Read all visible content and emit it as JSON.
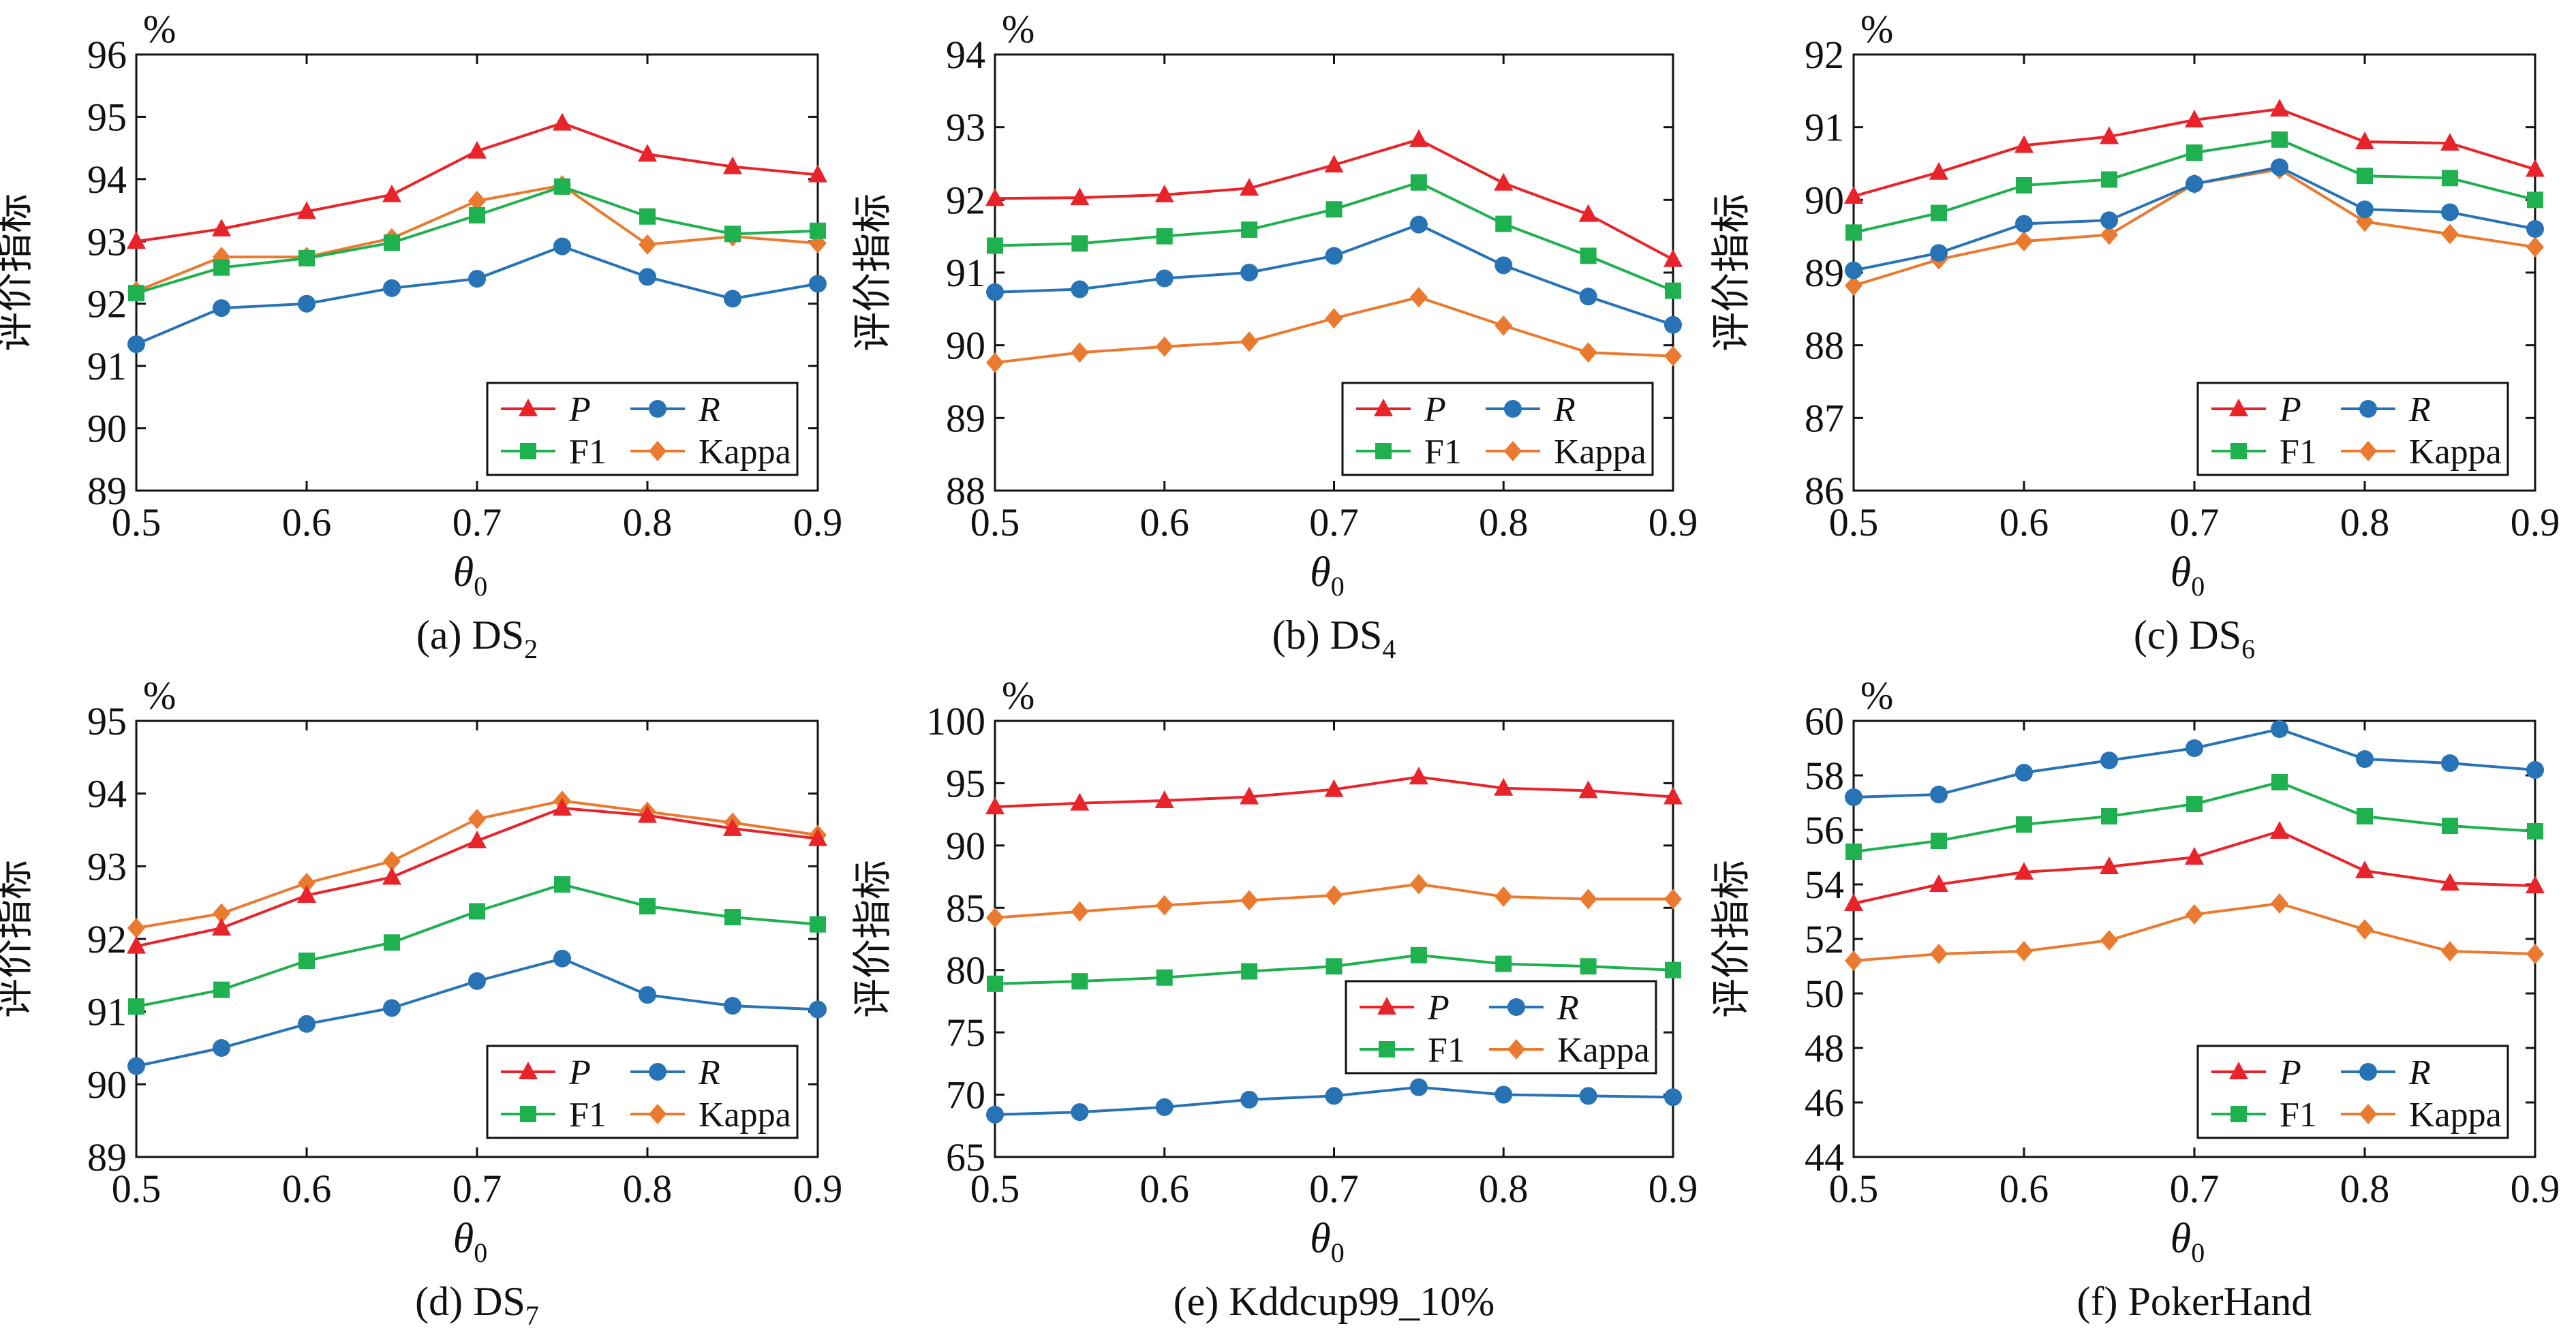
{
  "colors": {
    "P": "#e8242a",
    "R": "#2873b5",
    "F1": "#1fb04f",
    "Kappa": "#ea7a2f"
  },
  "legend": {
    "P": "P",
    "R": "R",
    "F1": "F1",
    "Kappa": "Kappa"
  },
  "chart_data": [
    {
      "type": "line",
      "caption": "(a) DS",
      "caption_sub": "2",
      "unit": "%",
      "ylabel": "评价指标",
      "xlabel": "θ",
      "xlabel_sub": "0",
      "x": [
        0.5,
        0.55,
        0.6,
        0.65,
        0.7,
        0.75,
        0.8,
        0.85,
        0.9
      ],
      "xticks": [
        "0.5",
        "0.6",
        "0.7",
        "0.8",
        "0.9"
      ],
      "xtick_values": [
        0.5,
        0.6,
        0.7,
        0.8,
        0.9
      ],
      "xlim": [
        0.5,
        0.9
      ],
      "ylim": [
        89,
        96
      ],
      "yticks": [
        "89",
        "90",
        "91",
        "92",
        "93",
        "94",
        "95",
        "96"
      ],
      "ytick_values": [
        89,
        90,
        91,
        92,
        93,
        94,
        95,
        96
      ],
      "series": [
        {
          "name": "P",
          "marker": "triangle",
          "values": [
            93.0,
            93.2,
            93.48,
            93.75,
            94.45,
            94.9,
            94.4,
            94.2,
            94.07
          ]
        },
        {
          "name": "R",
          "marker": "circle",
          "values": [
            91.35,
            91.93,
            92.0,
            92.25,
            92.4,
            92.92,
            92.43,
            92.08,
            92.32
          ]
        },
        {
          "name": "F1",
          "marker": "square",
          "values": [
            92.17,
            92.58,
            92.73,
            92.98,
            93.42,
            93.88,
            93.4,
            93.12,
            93.17
          ]
        },
        {
          "name": "Kappa",
          "marker": "diamond",
          "values": [
            92.2,
            92.75,
            92.75,
            93.05,
            93.65,
            93.9,
            92.95,
            93.08,
            92.97
          ]
        }
      ]
    },
    {
      "type": "line",
      "caption": "(b) DS",
      "caption_sub": "4",
      "unit": "%",
      "ylabel": "评价指标",
      "xlabel": "θ",
      "xlabel_sub": "0",
      "x": [
        0.5,
        0.55,
        0.6,
        0.65,
        0.7,
        0.75,
        0.8,
        0.85,
        0.9
      ],
      "xticks": [
        "0.5",
        "0.6",
        "0.7",
        "0.8",
        "0.9"
      ],
      "xtick_values": [
        0.5,
        0.6,
        0.7,
        0.8,
        0.9
      ],
      "xlim": [
        0.5,
        0.9
      ],
      "ylim": [
        88,
        94
      ],
      "yticks": [
        "88",
        "89",
        "90",
        "91",
        "92",
        "93",
        "94"
      ],
      "ytick_values": [
        88,
        89,
        90,
        91,
        92,
        93,
        94
      ],
      "series": [
        {
          "name": "P",
          "marker": "triangle",
          "values": [
            92.02,
            92.03,
            92.07,
            92.16,
            92.48,
            92.83,
            92.23,
            91.8,
            91.18
          ]
        },
        {
          "name": "R",
          "marker": "circle",
          "values": [
            90.73,
            90.77,
            90.92,
            91.0,
            91.23,
            91.66,
            91.1,
            90.67,
            90.28
          ]
        },
        {
          "name": "F1",
          "marker": "square",
          "values": [
            91.37,
            91.4,
            91.5,
            91.59,
            91.87,
            92.24,
            91.67,
            91.23,
            90.75
          ]
        },
        {
          "name": "Kappa",
          "marker": "diamond",
          "values": [
            89.76,
            89.9,
            89.98,
            90.05,
            90.37,
            90.66,
            90.27,
            89.9,
            89.85
          ]
        }
      ]
    },
    {
      "type": "line",
      "caption": "(c) DS",
      "caption_sub": "6",
      "unit": "%",
      "ylabel": "评价指标",
      "xlabel": "θ",
      "xlabel_sub": "0",
      "x": [
        0.5,
        0.55,
        0.6,
        0.65,
        0.7,
        0.75,
        0.8,
        0.85,
        0.9
      ],
      "xticks": [
        "0.5",
        "0.6",
        "0.7",
        "0.8",
        "0.9"
      ],
      "xtick_values": [
        0.5,
        0.6,
        0.7,
        0.8,
        0.9
      ],
      "xlim": [
        0.5,
        0.9
      ],
      "ylim": [
        86,
        92
      ],
      "yticks": [
        "86",
        "87",
        "88",
        "89",
        "90",
        "91",
        "92"
      ],
      "ytick_values": [
        86,
        87,
        88,
        89,
        90,
        91,
        92
      ],
      "series": [
        {
          "name": "P",
          "marker": "triangle",
          "values": [
            90.05,
            90.38,
            90.75,
            90.87,
            91.1,
            91.25,
            90.8,
            90.78,
            90.42
          ]
        },
        {
          "name": "R",
          "marker": "circle",
          "values": [
            89.03,
            89.27,
            89.67,
            89.72,
            90.22,
            90.45,
            89.87,
            89.83,
            89.6
          ]
        },
        {
          "name": "F1",
          "marker": "square",
          "values": [
            89.55,
            89.82,
            90.2,
            90.28,
            90.65,
            90.83,
            90.33,
            90.3,
            90.0
          ]
        },
        {
          "name": "Kappa",
          "marker": "diamond",
          "values": [
            88.82,
            89.18,
            89.43,
            89.52,
            90.22,
            90.42,
            89.7,
            89.53,
            89.35
          ]
        }
      ]
    },
    {
      "type": "line",
      "caption": "(d) DS",
      "caption_sub": "7",
      "unit": "%",
      "ylabel": "评价指标",
      "xlabel": "θ",
      "xlabel_sub": "0",
      "x": [
        0.5,
        0.55,
        0.6,
        0.65,
        0.7,
        0.75,
        0.8,
        0.85,
        0.9
      ],
      "xticks": [
        "0.5",
        "0.6",
        "0.7",
        "0.8",
        "0.9"
      ],
      "xtick_values": [
        0.5,
        0.6,
        0.7,
        0.8,
        0.9
      ],
      "xlim": [
        0.5,
        0.9
      ],
      "ylim": [
        89,
        95
      ],
      "yticks": [
        "89",
        "90",
        "91",
        "92",
        "93",
        "94",
        "95"
      ],
      "ytick_values": [
        89,
        90,
        91,
        92,
        93,
        94,
        95
      ],
      "series": [
        {
          "name": "P",
          "marker": "triangle",
          "values": [
            91.9,
            92.15,
            92.6,
            92.85,
            93.35,
            93.8,
            93.7,
            93.52,
            93.38
          ]
        },
        {
          "name": "R",
          "marker": "circle",
          "values": [
            90.25,
            90.5,
            90.83,
            91.05,
            91.42,
            91.73,
            91.23,
            91.08,
            91.03
          ]
        },
        {
          "name": "F1",
          "marker": "square",
          "values": [
            91.07,
            91.3,
            91.7,
            91.95,
            92.38,
            92.75,
            92.45,
            92.3,
            92.2
          ]
        },
        {
          "name": "Kappa",
          "marker": "diamond",
          "values": [
            92.15,
            92.35,
            92.77,
            93.07,
            93.65,
            93.9,
            93.75,
            93.6,
            93.43
          ]
        }
      ]
    },
    {
      "type": "line",
      "caption": "(e) Kddcup99_10%",
      "caption_sub": "",
      "unit": "%",
      "ylabel": "评价指标",
      "xlabel": "θ",
      "xlabel_sub": "0",
      "x": [
        0.5,
        0.55,
        0.6,
        0.65,
        0.7,
        0.75,
        0.8,
        0.85,
        0.9
      ],
      "xticks": [
        "0.5",
        "0.6",
        "0.7",
        "0.8",
        "0.9"
      ],
      "xtick_values": [
        0.5,
        0.6,
        0.7,
        0.8,
        0.9
      ],
      "xlim": [
        0.5,
        0.9
      ],
      "ylim": [
        65,
        100
      ],
      "yticks": [
        "65",
        "70",
        "75",
        "80",
        "85",
        "90",
        "95",
        "100"
      ],
      "ytick_values": [
        65,
        70,
        75,
        80,
        85,
        90,
        95,
        100
      ],
      "series": [
        {
          "name": "P",
          "marker": "triangle",
          "values": [
            93.1,
            93.4,
            93.6,
            93.9,
            94.5,
            95.5,
            94.6,
            94.4,
            93.9
          ]
        },
        {
          "name": "R",
          "marker": "circle",
          "values": [
            68.4,
            68.6,
            69.0,
            69.6,
            69.9,
            70.6,
            70.0,
            69.9,
            69.8
          ]
        },
        {
          "name": "F1",
          "marker": "square",
          "values": [
            78.9,
            79.1,
            79.4,
            79.9,
            80.3,
            81.2,
            80.5,
            80.3,
            80.0
          ]
        },
        {
          "name": "Kappa",
          "marker": "diamond",
          "values": [
            84.2,
            84.7,
            85.2,
            85.6,
            86.0,
            86.9,
            85.9,
            85.7,
            85.7
          ]
        }
      ]
    },
    {
      "type": "line",
      "caption": "(f) PokerHand",
      "caption_sub": "",
      "unit": "%",
      "ylabel": "评价指标",
      "xlabel": "θ",
      "xlabel_sub": "0",
      "x": [
        0.5,
        0.55,
        0.6,
        0.65,
        0.7,
        0.75,
        0.8,
        0.85,
        0.9
      ],
      "xticks": [
        "0.5",
        "0.6",
        "0.7",
        "0.8",
        "0.9"
      ],
      "xtick_values": [
        0.5,
        0.6,
        0.7,
        0.8,
        0.9
      ],
      "xlim": [
        0.5,
        0.9
      ],
      "ylim": [
        44,
        60
      ],
      "yticks": [
        "44",
        "46",
        "48",
        "50",
        "52",
        "54",
        "56",
        "58",
        "60"
      ],
      "ytick_values": [
        44,
        46,
        48,
        50,
        52,
        54,
        56,
        58,
        60
      ],
      "series": [
        {
          "name": "P",
          "marker": "triangle",
          "values": [
            53.3,
            54.0,
            54.45,
            54.65,
            55.0,
            55.95,
            54.5,
            54.05,
            53.95
          ]
        },
        {
          "name": "R",
          "marker": "circle",
          "values": [
            57.2,
            57.3,
            58.1,
            58.55,
            59.0,
            59.7,
            58.6,
            58.45,
            58.2
          ]
        },
        {
          "name": "F1",
          "marker": "square",
          "values": [
            55.2,
            55.6,
            56.2,
            56.5,
            56.95,
            57.75,
            56.5,
            56.15,
            55.95
          ]
        },
        {
          "name": "Kappa",
          "marker": "diamond",
          "values": [
            51.2,
            51.45,
            51.55,
            51.95,
            52.9,
            53.3,
            52.35,
            51.55,
            51.45
          ]
        }
      ]
    }
  ]
}
